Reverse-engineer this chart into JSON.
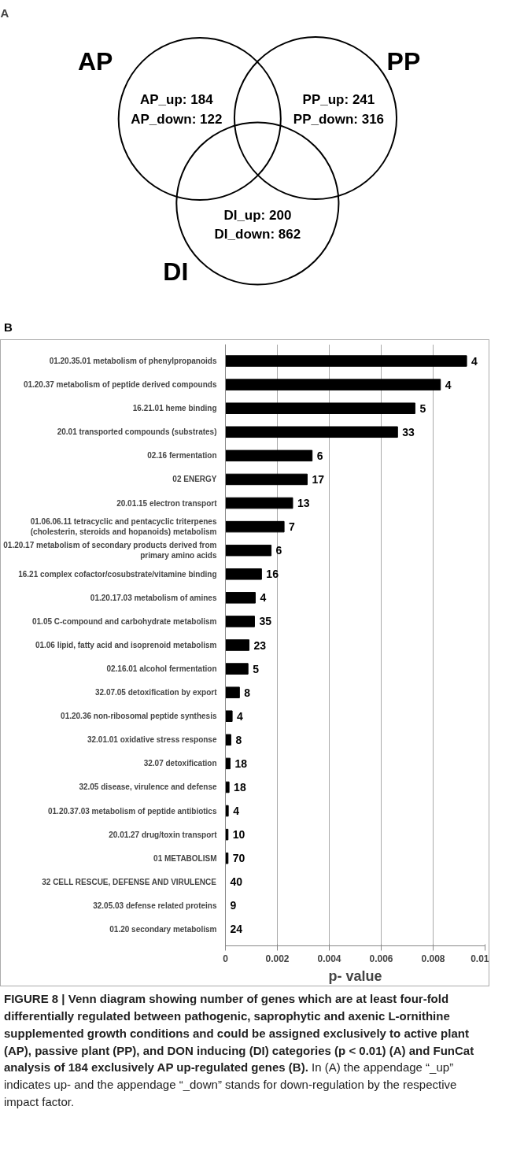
{
  "chart_data": [
    {
      "type": "other",
      "title": "A",
      "annotations": [
        "AP",
        "PP",
        "DI",
        "AP_up: 184\nAP_down: 122",
        "PP_up: 241\nPP_down: 316",
        "DI_up: 200\nDI_down: 862"
      ]
    },
    {
      "type": "bar",
      "title": "B",
      "orientation": "horizontal",
      "xlabel": "p- value",
      "categories": [
        "01.20.35.01 metabolism of phenylpropanoids",
        "01.20.37 metabolism of peptide derived compounds",
        "16.21.01 heme binding",
        "20.01 transported compounds (substrates)",
        "02.16 fermentation",
        "02 ENERGY",
        "20.01.15 electron transport",
        "01.06.06.11 tetracyclic and pentacyclic triterpenes (cholesterin, steroids and hopanoids) metabolism",
        "01.20.17 metabolism of secondary products derived from primary amino acids",
        "16.21 complex cofactor/cosubstrate/vitamine binding",
        "01.20.17.03 metabolism of amines",
        "01.05 C-compound and carbohydrate metabolism",
        "01.06 lipid, fatty acid and isoprenoid metabolism",
        "02.16.01 alcohol fermentation",
        "32.07.05 detoxification by export",
        "01.20.36 non-ribosomal peptide synthesis",
        "32.01.01 oxidative stress response",
        "32.07 detoxification",
        "32.05 disease, virulence and defense",
        "01.20.37.03 metabolism of peptide antibiotics",
        "20.01.27 drug/toxin transport",
        "01 METABOLISM",
        "32 CELL RESCUE, DEFENSE AND VIRULENCE",
        "32.05.03 defense related proteins",
        "01.20 secondary metabolism"
      ],
      "values": [
        0.00929,
        0.00828,
        0.0073,
        0.00663,
        0.00334,
        0.00315,
        0.00259,
        0.00226,
        0.00176,
        0.00139,
        0.00115,
        0.00112,
        0.00091,
        0.00087,
        0.00054,
        0.00026,
        0.00021,
        0.00018,
        0.00014,
        0.00011,
        0.0001,
        0.0001,
        0,
        0,
        0
      ],
      "color": "#000000",
      "xlim": [
        0,
        0.01
      ],
      "xticks": [
        0,
        0.002,
        0.004,
        0.006,
        0.008,
        0.01
      ],
      "grid": "x",
      "annotations": [
        {
          "text": "4",
          "x": 0.00929,
          "y": "01.20.35.01 metabolism of phenylpropanoids"
        },
        {
          "text": "4",
          "x": 0.00828,
          "y": "01.20.37 metabolism of peptide derived compounds"
        },
        {
          "text": "5",
          "x": 0.0073,
          "y": "16.21.01 heme binding"
        },
        {
          "text": "33",
          "x": 0.00663,
          "y": "20.01 transported compounds (substrates)"
        },
        {
          "text": "6",
          "x": 0.00334,
          "y": "02.16 fermentation"
        },
        {
          "text": "17",
          "x": 0.00315,
          "y": "02 ENERGY"
        },
        {
          "text": "13",
          "x": 0.00259,
          "y": "20.01.15 electron transport"
        },
        {
          "text": "7",
          "x": 0.00226,
          "y": "01.06.06.11 tetracyclic and pentacyclic triterpenes (cholesterin, steroids and hopanoids) metabolism"
        },
        {
          "text": "6",
          "x": 0.00176,
          "y": "01.20.17 metabolism of secondary products derived from primary amino acids"
        },
        {
          "text": "16",
          "x": 0.00139,
          "y": "16.21 complex cofactor/cosubstrate/vitamine binding"
        },
        {
          "text": "4",
          "x": 0.00115,
          "y": "01.20.17.03 metabolism of amines"
        },
        {
          "text": "35",
          "x": 0.00112,
          "y": "01.05 C-compound and carbohydrate metabolism"
        },
        {
          "text": "23",
          "x": 0.00091,
          "y": "01.06 lipid, fatty acid and isoprenoid metabolism"
        },
        {
          "text": "5",
          "x": 0.00087,
          "y": "02.16.01 alcohol fermentation"
        },
        {
          "text": "8",
          "x": 0.00054,
          "y": "32.07.05 detoxification by export"
        },
        {
          "text": "4",
          "x": 0.00026,
          "y": "01.20.36 non-ribosomal peptide synthesis"
        },
        {
          "text": "8",
          "x": 0.00021,
          "y": "32.01.01 oxidative stress response"
        },
        {
          "text": "18",
          "x": 0.00018,
          "y": "32.07 detoxification"
        },
        {
          "text": "18",
          "x": 0.00014,
          "y": "32.05 disease, virulence and defense"
        },
        {
          "text": "4",
          "x": 0.00011,
          "y": "01.20.37.03 metabolism of peptide antibiotics"
        },
        {
          "text": "10",
          "x": 0.0001,
          "y": "20.01.27 drug/toxin transport"
        },
        {
          "text": "70",
          "x": 0.0001,
          "y": "01 METABOLISM"
        },
        {
          "text": "40",
          "x": 0,
          "y": "32 CELL RESCUE, DEFENSE AND VIRULENCE"
        },
        {
          "text": "9",
          "x": 0,
          "y": "32.05.03 defense related proteins"
        },
        {
          "text": "24",
          "x": 0,
          "y": "01.20 secondary metabolism"
        },
        "FIGURE 8 | Venn diagram showing number of genes which are at least four-fold differentially regulated between pathogenic, saprophytic and axenic L-ornithine supplemented growth conditions and could be assigned exclusively to active plant (AP), passive plant (PP), and DON inducing (DI) categories (p < 0.01) (A) and FunCat analysis of 184 exclusively AP up-regulated genes (B).",
        "In (A) the appendage “_up” indicates up- and the appendage “_down” stands for down-regulation by the respective impact factor."
      ]
    }
  ]
}
